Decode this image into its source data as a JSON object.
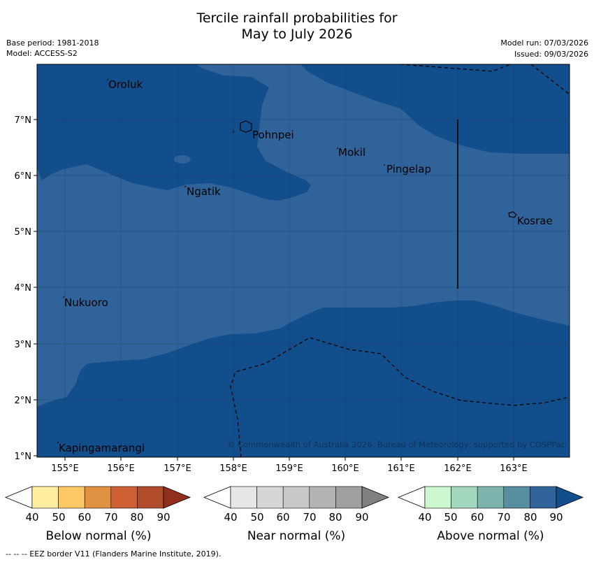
{
  "title": {
    "line1": "Tercile rainfall probabilities for",
    "line2": "May to July 2026"
  },
  "meta": {
    "base_period": "Base period: 1981-2018",
    "model": "Model: ACCESS-S2",
    "model_run": "Model run: 07/03/2026",
    "issued": "Issued: 09/03/2026"
  },
  "map": {
    "x_axis": [
      "155°E",
      "156°E",
      "157°E",
      "158°E",
      "159°E",
      "160°E",
      "161°E",
      "162°E",
      "163°E"
    ],
    "y_axis": [
      "7°N",
      "6°N",
      "5°N",
      "4°N",
      "3°N",
      "2°N",
      "1°N"
    ],
    "places": [
      "Oroluk",
      "Pohnpei",
      "Mokil",
      "Pingelap",
      "Ngatik",
      "Kosrae",
      "Nukuoro",
      "Kapingamarangi"
    ],
    "copyright": "© Commonwealth of Australia 2026, Bureau of Meteorology, supported by COSPPac"
  },
  "legend": {
    "ticks": [
      "40",
      "50",
      "60",
      "70",
      "80",
      "90"
    ],
    "below": "Below normal (%)",
    "near": "Near normal (%)",
    "above": "Above normal (%)",
    "below_colors": [
      "#ffeda0",
      "#fec965",
      "#e09142",
      "#cd6032",
      "#b04b2c",
      "#8f2f1c"
    ],
    "near_colors": [
      "#e6e6e6",
      "#d6d6d6",
      "#c8c8c8",
      "#b4b4b4",
      "#a0a0a0",
      "#808080"
    ],
    "above_colors": [
      "#ccf7cf",
      "#a2d8be",
      "#7fb3ae",
      "#578f9e",
      "#2f6399",
      "#124e8b"
    ]
  },
  "footer": "-- -- -- EEZ border V11 (Flanders Marine Institute, 2019)."
}
